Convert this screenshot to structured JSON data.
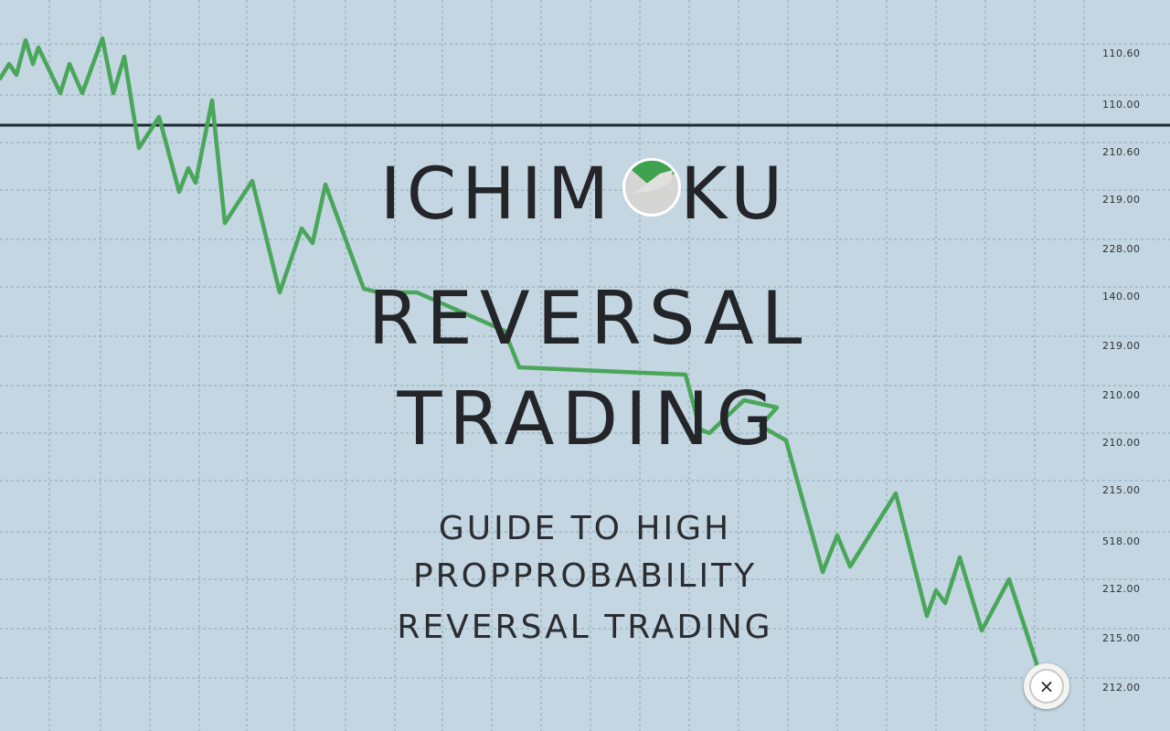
{
  "title": {
    "line1_part1": "ICHIM",
    "line1_part2": "KU",
    "line2": "REVERSAL",
    "line3": "TRADING"
  },
  "subtitle": {
    "line1": "GUIDE TO HIGH",
    "line2": "PROPPROBABILITY",
    "line3": "REVERSAL TRADING"
  },
  "price_labels": [
    "110.60",
    "110.00",
    "210.60",
    "219.00",
    "228.00",
    "140.00",
    "219.00",
    "210.00",
    "210.00",
    "215.00",
    "518.00",
    "212.00",
    "215.00",
    "212.00"
  ],
  "close_button": {
    "label": "×"
  },
  "icons": {
    "logo": "ichimoku-cloud-circle-icon",
    "close": "close-icon"
  },
  "colors": {
    "background": "#c3d6e1",
    "line": "#4aa65a",
    "title": "#232528",
    "grid": "#7e99ad",
    "horizontal_rule": "#1e2a33"
  }
}
